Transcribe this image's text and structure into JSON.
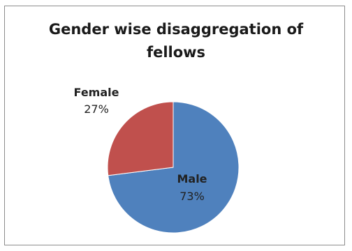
{
  "chart_data": {
    "type": "pie",
    "title_lines": [
      "Gender wise disaggregation of",
      "fellows"
    ],
    "slices": [
      {
        "label": "Male",
        "value": 73,
        "value_label": "73%",
        "color": "#4f81bd"
      },
      {
        "label": "Female",
        "value": 27,
        "value_label": "27%",
        "color": "#c0504d"
      }
    ],
    "legend": "none"
  }
}
